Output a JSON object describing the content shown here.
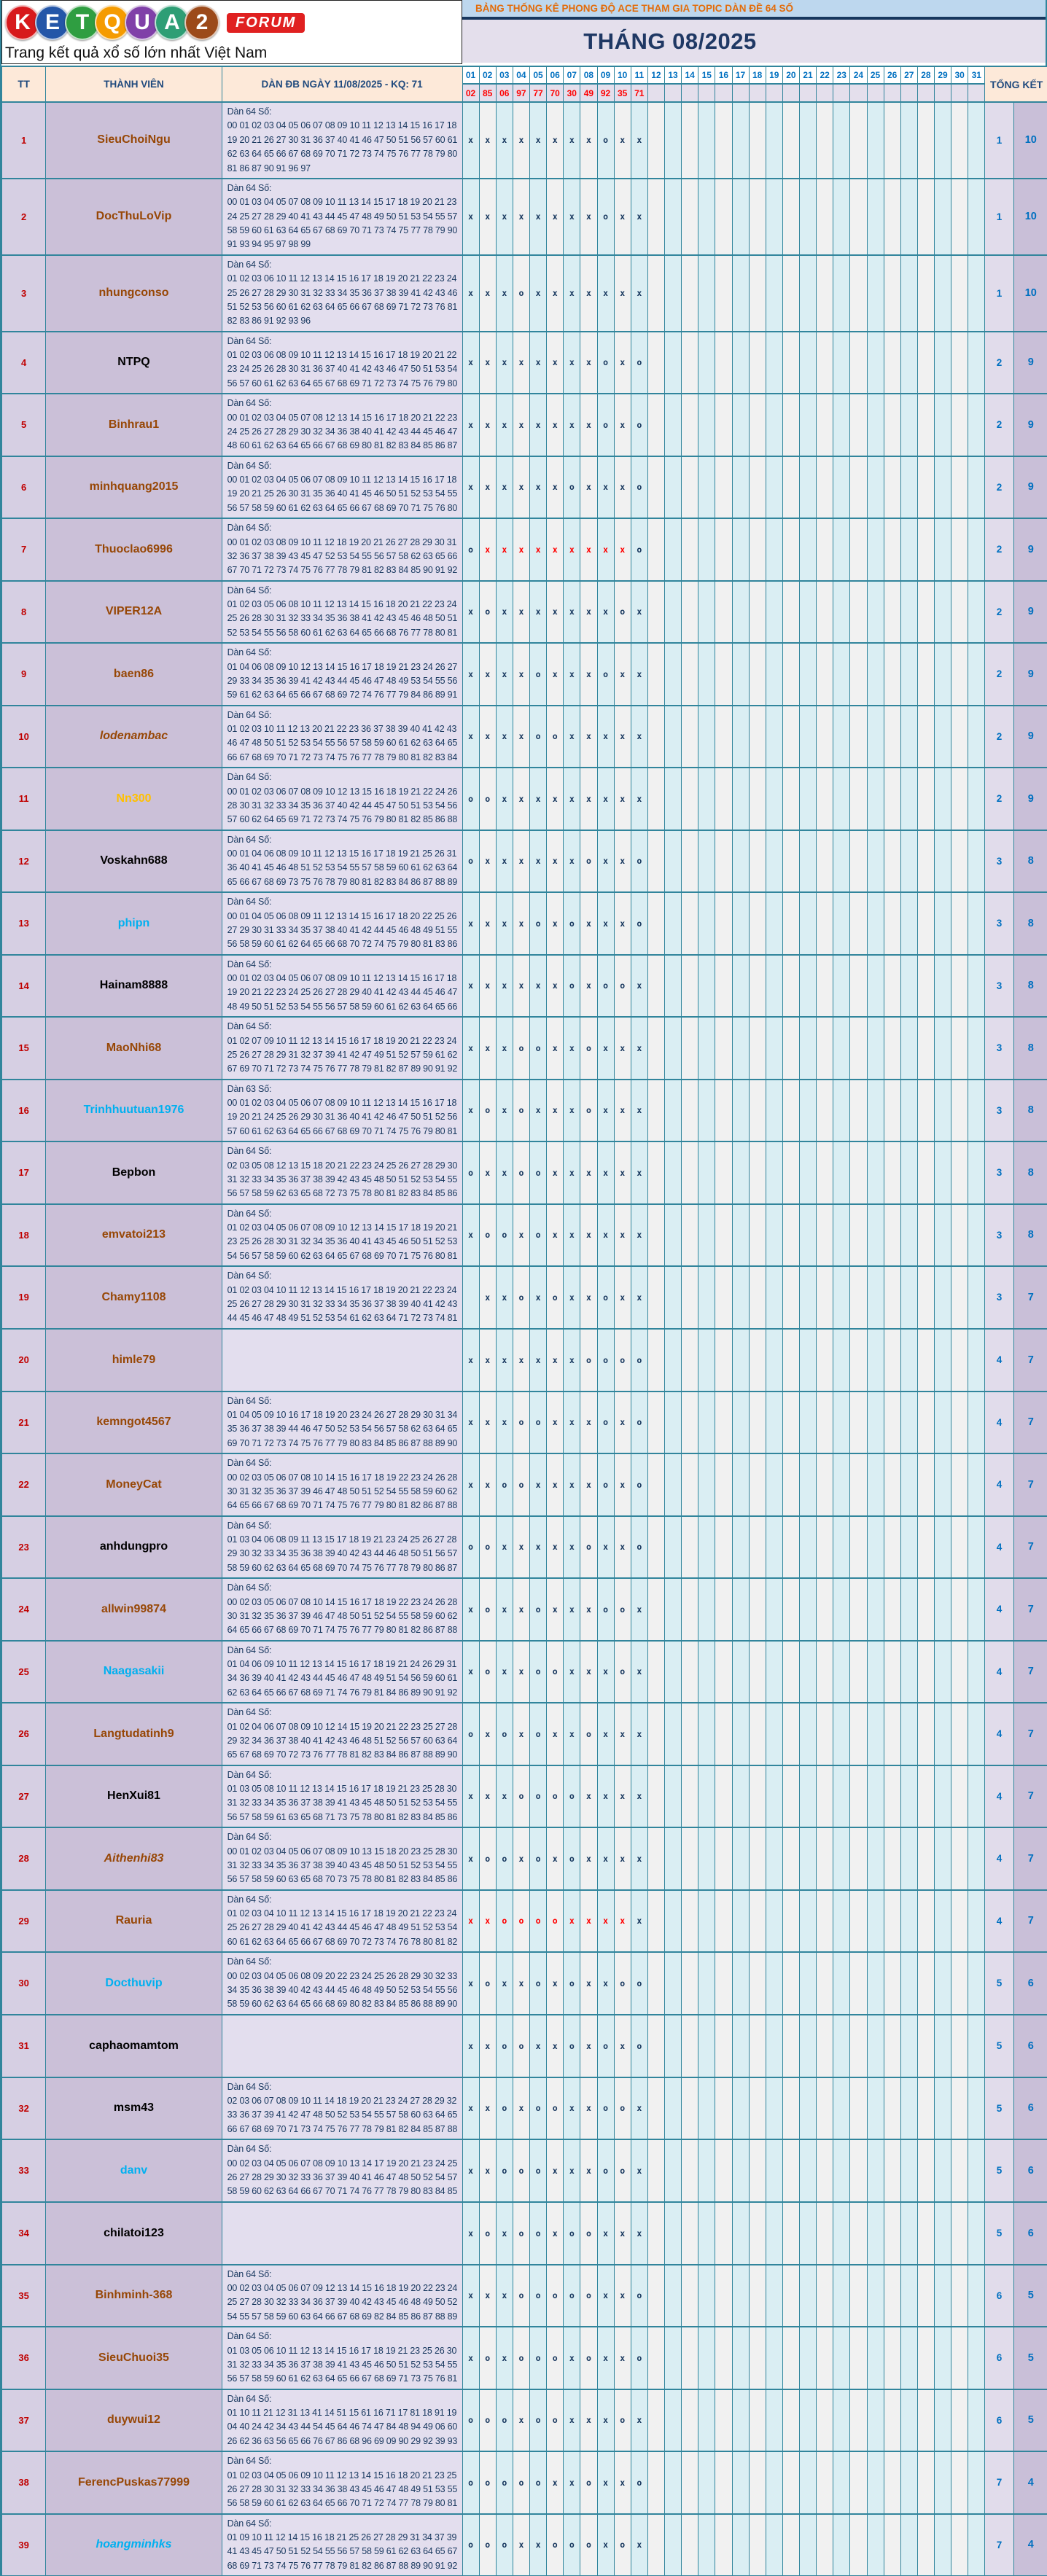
{
  "logo": {
    "letters": [
      {
        "ch": "K",
        "bg": "#d7191c"
      },
      {
        "ch": "E",
        "bg": "#2456a8"
      },
      {
        "ch": "T",
        "bg": "#2f9e41"
      },
      {
        "ch": "Q",
        "bg": "#f59b00"
      },
      {
        "ch": "U",
        "bg": "#8040a8"
      },
      {
        "ch": "A",
        "bg": "#2e9e75"
      },
      {
        "ch": "2",
        "bg": "#9c4a1a"
      }
    ],
    "forum": "FORUM",
    "tagline": "Trang kết quả xổ số lớn nhất Việt Nam"
  },
  "header": {
    "title": "BẢNG THỐNG KÊ PHONG ĐỘ ACE THAM GIA TOPIC DÀN ĐỀ 64 SỐ",
    "month": "THÁNG 08/2025"
  },
  "colors": {
    "accent_teal_border": "#31859C",
    "peach_header": "#FDE9D9",
    "lavender": "#E4DFEC",
    "purple_cell": "#CBC0D8",
    "day_cyan": "#DAEEF3",
    "day_gray": "#F1F1F1",
    "navy_text": "#17375E",
    "blue_number": "#0070C0",
    "red_result": "#FF0000",
    "orange_title": "#E36C0A",
    "name_brown": "#974706",
    "name_cyan": "#00B0F0",
    "name_orange": "#FFC000"
  },
  "table": {
    "col_tt": "TT",
    "col_member": "THÀNH VIÊN",
    "col_dan": "DÀN ĐB NGÀY 11/08/2025 - KQ: 71",
    "col_total": "TỔNG KẾT",
    "days": [
      "01",
      "02",
      "03",
      "04",
      "05",
      "06",
      "07",
      "08",
      "09",
      "10",
      "11",
      "12",
      "13",
      "14",
      "15",
      "16",
      "17",
      "18",
      "19",
      "20",
      "21",
      "22",
      "23",
      "24",
      "25",
      "26",
      "27",
      "28",
      "29",
      "30",
      "31"
    ],
    "results": [
      "02",
      "85",
      "06",
      "97",
      "77",
      "70",
      "30",
      "49",
      "92",
      "35",
      "71",
      "",
      "",
      "",
      "",
      "",
      "",
      "",
      "",
      "",
      "",
      "",
      "",
      "",
      "",
      "",
      "",
      "",
      "",
      "",
      ""
    ],
    "rows": [
      {
        "tt": "1",
        "name": "SieuChoiNgu",
        "color": "#974706",
        "italic": false,
        "dan_label": "Dàn 64 Số:",
        "dan": "00 01 02 03 04 05 06 07 08 09 10 11 12 13 14 15 16 17 18 19 20 21 26 27 30 31 36 37 40 41 46 47 50 51 56 57 60 61 62 63 64 65 66 67 68 69 70 71 72 73 74 75 76 77 78 79 80 81 86 87 90 91 96 97",
        "marks": "xxxxxxxxoxx",
        "red": [],
        "miss": "1",
        "win": "10"
      },
      {
        "tt": "2",
        "name": "DocThuLoVip",
        "color": "#974706",
        "italic": false,
        "dan_label": "Dàn 64 Số:",
        "dan": "00 01 03 04 05 07 08 09 10 11 13 14 15 17 18 19 20 21 23 24 25 27 28 29 40 41 43 44 45 47 48 49 50 51 53 54 55 57 58 59 60 61 63 64 65 67 68 69 70 71 73 74 75 77 78 79 90 91 93 94 95 97 98 99",
        "marks": "xxxxxxxxoxx",
        "red": [],
        "miss": "1",
        "win": "10"
      },
      {
        "tt": "3",
        "name": "nhungconso",
        "color": "#974706",
        "italic": false,
        "dan_label": "Dàn 64 Số:",
        "dan": "01 02 03 06 10 11 12 13 14 15 16 17 18 19 20 21 22 23 24 25 26 27 28 29 30 31 32 33 34 35 36 37 38 39 41 42 43 46 51 52 53 56 60 61 62 63 64 65 66 67 68 69 71 72 73 76 81 82 83 86 91 92 93 96",
        "marks": "xxxoxxxxxxx",
        "red": [],
        "miss": "1",
        "win": "10"
      },
      {
        "tt": "4",
        "name": "NTPQ",
        "color": "#000000",
        "italic": false,
        "dan_label": "Dàn 64 Số:",
        "dan": "01 02 03 06 08 09 10 11 12 13 14 15 16 17 18 19 20 21 22 23 24 25 26 28 30 31 36 37 40 41 42 43 46 47 50 51 53 54 56 57 60 61 62 63 64 65 67 68 69 71 72 73 74 75 76 79 80",
        "marks": "xxxxxxxxoxo",
        "red": [],
        "miss": "2",
        "win": "9"
      },
      {
        "tt": "5",
        "name": "Binhrau1",
        "color": "#974706",
        "italic": false,
        "dan_label": "Dàn 64 Số:",
        "dan": "00 01 02 03 04 05 07 08 12 13 14 15 16 17 18 20 21 22 23 24 25 26 27 28 29 30 32 34 36 38 40 41 42 43 44 45 46 47 48 60 61 62 63 64 65 66 67 68 69 80 81 82 83 84 85 86 87",
        "marks": "xxxxxxxxoxo",
        "red": [],
        "miss": "2",
        "win": "9"
      },
      {
        "tt": "6",
        "name": "minhquang2015",
        "color": "#974706",
        "italic": false,
        "dan_label": "Dàn 64 Số:",
        "dan": "00 01 02 03 04 05 06 07 08 09 10 11 12 13 14 15 16 17 18 19 20 21 25 26 30 31 35 36 40 41 45 46 50 51 52 53 54 55 56 57 58 59 60 61 62 63 64 65 66 67 68 69 70 71 75 76 80",
        "marks": "xxxxxxoxxxo",
        "red": [],
        "miss": "2",
        "win": "9"
      },
      {
        "tt": "7",
        "name": "Thuoclao6996",
        "color": "#974706",
        "italic": false,
        "dan_label": "Dàn 64 Số:",
        "dan": "00 01 02 03 08 09 10 11 12 18 19 20 21 26 27 28 29 30 31 32 36 37 38 39 43 45 47 52 53 54 55 56 57 58 62 63 65 66 67 70 71 72 73 74 75 76 77 78 79 81 82 83 84 85 90 91 92",
        "marks": "oxxxxxxxxxo",
        "red": [
          1,
          2,
          3,
          4,
          5,
          6,
          7,
          8,
          9
        ],
        "miss": "2",
        "win": "9"
      },
      {
        "tt": "8",
        "name": "VIPER12A",
        "color": "#974706",
        "italic": false,
        "dan_label": "Dàn 64 Số:",
        "dan": "01 02 03 05 06 08 10 11 12 13 14 15 16 18 20 21 22 23 24 25 26 28 30 31 32 33 34 35 36 38 41 42 43 45 46 48 50 51 52 53 54 55 56 58 60 61 62 63 64 65 66 68 76 77 78 80 81",
        "marks": "xoxxxxxxxox",
        "red": [],
        "miss": "2",
        "win": "9"
      },
      {
        "tt": "9",
        "name": "baen86",
        "color": "#974706",
        "italic": false,
        "dan_label": "Dàn 64 Số:",
        "dan": "01 04 06 08 09 10 12 13 14 15 16 17 18 19 21 23 24 26 27 29 33 34 35 36 39 41 42 43 44 45 46 47 48 49 53 54 55 56 59 61 62 63 64 65 66 67 68 69 72 74 76 77 79 84 86 89 91",
        "marks": "xxxxoxxxoxx",
        "red": [],
        "miss": "2",
        "win": "9"
      },
      {
        "tt": "10",
        "name": "lodenambac",
        "color": "#974706",
        "italic": true,
        "dan_label": "Dàn 64 Số:",
        "dan": "01 02 03 10 11 12 13 20 21 22 23 36 37 38 39 40 41 42 43 46 47 48 50 51 52 53 54 55 56 57 58 59 60 61 62 63 64 65 66 67 68 69 70 71 72 73 74 75 76 77 78 79 80 81 82 83 84",
        "marks": "xxxxooxxxxx",
        "red": [],
        "miss": "2",
        "win": "9"
      },
      {
        "tt": "11",
        "name": "Nn300",
        "color": "#FFC000",
        "italic": false,
        "dan_label": "Dàn 64 Số:",
        "dan": "00 01 02 03 06 07 08 09 10 12 13 15 16 18 19 21 22 24 26 28 30 31 32 33 34 35 36 37 40 42 44 45 47 50 51 53 54 56 57 60 62 64 65 69 71 72 73 74 75 76 79 80 81 82 85 86 88",
        "marks": "ooxxxxxxxxx",
        "red": [],
        "miss": "2",
        "win": "9"
      },
      {
        "tt": "12",
        "name": "Voskahn688",
        "color": "#000000",
        "italic": false,
        "dan_label": "Dàn 64 Số:",
        "dan": "00 01 04 06 08 09 10 11 12 13 15 16 17 18 19 21 25 26 31 36 40 41 45 46 48 51 52 53 54 55 57 58 59 60 61 62 63 64 65 66 67 68 69 73 75 76 78 79 80 81 82 83 84 86 87 88 89",
        "marks": "oxxxxxxoxxo",
        "red": [],
        "miss": "3",
        "win": "8"
      },
      {
        "tt": "13",
        "name": "phipn",
        "color": "#00B0F0",
        "italic": false,
        "dan_label": "Dàn 64 Số:",
        "dan": "00 01 04 05 06 08 09 11 12 13 14 15 16 17 18 20 22 25 26 27 29 30 31 33 34 35 37 38 40 41 42 44 45 46 48 49 51 55 56 58 59 60 61 62 64 65 66 68 70 72 74 75 79 80 81 83 86",
        "marks": "xxxxoxoxxxo",
        "red": [],
        "miss": "3",
        "win": "8"
      },
      {
        "tt": "14",
        "name": "Hainam8888",
        "color": "#000000",
        "italic": false,
        "dan_label": "Dàn 64 Số:",
        "dan": "00 01 02 03 04 05 06 07 08 09 10 11 12 13 14 15 16 17 18 19 20 21 22 23 24 25 26 27 28 29 40 41 42 43 44 45 46 47 48 49 50 51 52 53 54 55 56 57 58 59 60 61 62 63 64 65 66",
        "marks": "xxxxxxoxoox",
        "red": [],
        "miss": "3",
        "win": "8"
      },
      {
        "tt": "15",
        "name": "MaoNhi68",
        "color": "#974706",
        "italic": false,
        "dan_label": "Dàn 64 Số:",
        "dan": "01 02 07 09 10 11 12 13 14 15 16 17 18 19 20 21 22 23 24 25 26 27 28 29 31 32 37 39 41 42 47 49 51 52 57 59 61 62 67 69 70 71 72 73 74 75 76 77 78 79 81 82 87 89 90 91 92",
        "marks": "xxxooxxoxxx",
        "red": [],
        "miss": "3",
        "win": "8"
      },
      {
        "tt": "16",
        "name": "Trinhhuutuan1976",
        "color": "#00B0F0",
        "italic": false,
        "dan_label": "Dàn 63 Số:",
        "dan": "00 01 02 03 04 05 06 07 08 09 10 11 12 13 14 15 16 17 18 19 20 21 24 25 26 29 30 31 36 40 41 42 46 47 50 51 52 56 57 60 61 62 63 64 65 66 67 68 69 70 71 74 75 76 79 80 81",
        "marks": "xoxoxxxoxxx",
        "red": [],
        "miss": "3",
        "win": "8"
      },
      {
        "tt": "17",
        "name": "Bepbon",
        "color": "#000000",
        "italic": false,
        "dan_label": "Dàn 64 Số:",
        "dan": "02 03 05 08 12 13 15 18 20 21 22 23 24 25 26 27 28 29 30 31 32 33 34 35 36 37 38 39 42 43 45 48 50 51 52 53 54 55 56 57 58 59 62 63 65 68 72 73 75 78 80 81 82 83 84 85 86",
        "marks": "oxxooxxxxxx",
        "red": [],
        "miss": "3",
        "win": "8"
      },
      {
        "tt": "18",
        "name": "emvatoi213",
        "color": "#974706",
        "italic": false,
        "dan_label": "Dàn 64 Số:",
        "dan": "01 02 03 04 05 06 07 08 09 10 12 13 14 15 17 18 19 20 21 23 25 26 28 30 31 32 34 35 36 40 41 43 45 46 50 51 52 53 54 56 57 58 59 60 62 63 64 65 67 68 69 70 71 75 76 80 81",
        "marks": "xooxoxxxxxx",
        "red": [],
        "miss": "3",
        "win": "8"
      },
      {
        "tt": "19",
        "name": "Chamy1108",
        "color": "#974706",
        "italic": false,
        "dan_label": "Dàn 64 Số:",
        "dan": "01 02 03 04 10 11 12 13 14 15 16 17 18 19 20 21 22 23 24 25 26 27 28 29 30 31 32 33 34 35 36 37 38 39 40 41 42 43 44 45 46 47 48 49 51 52 53 54 61 62 63 64 71 72 73 74 81",
        "marks": "-xxoxoxxoxx",
        "red": [],
        "miss": "3",
        "win": "7"
      },
      {
        "tt": "20",
        "name": "himle79",
        "color": "#974706",
        "italic": false,
        "dan_label": "",
        "dan": "",
        "marks": "xxxxxxxoooo",
        "red": [],
        "miss": "4",
        "win": "7"
      },
      {
        "tt": "21",
        "name": "kemngot4567",
        "color": "#974706",
        "italic": false,
        "dan_label": "Dàn 64 Số:",
        "dan": "01 04 05 09 10 16 17 18 19 20 23 24 26 27 28 29 30 31 34 35 36 37 38 39 44 46 47 50 52 53 54 56 57 58 62 63 64 65 69 70 71 72 73 74 75 76 77 79 80 83 84 85 86 87 88 89 90",
        "marks": "xxxooxxxoxo",
        "red": [],
        "miss": "4",
        "win": "7"
      },
      {
        "tt": "22",
        "name": "MoneyCat",
        "color": "#974706",
        "italic": false,
        "dan_label": "Dàn 64 Số:",
        "dan": "00 02 03 05 06 07 08 10 14 15 16 17 18 19 22 23 24 26 28 30 31 32 35 36 37 39 46 47 48 50 51 52 54 55 58 59 60 62 64 65 66 67 68 69 70 71 74 75 76 77 79 80 81 82 86 87 88",
        "marks": "xxooxxxxoxo",
        "red": [],
        "miss": "4",
        "win": "7"
      },
      {
        "tt": "23",
        "name": "anhdungpro",
        "color": "#000000",
        "italic": false,
        "dan_label": "Dàn 64 Số:",
        "dan": "01 03 04 06 08 09 11 13 15 17 18 19 21 23 24 25 26 27 28 29 30 32 33 34 35 36 38 39 40 42 43 44 46 48 50 51 56 57 58 59 60 62 63 64 65 68 69 70 74 75 76 77 78 79 80 86 87",
        "marks": "ooxxxxxoxxo",
        "red": [],
        "miss": "4",
        "win": "7"
      },
      {
        "tt": "24",
        "name": "allwin99874",
        "color": "#974706",
        "italic": false,
        "dan_label": "Dàn 64 Số:",
        "dan": "00 02 03 05 06 07 08 10 14 15 16 17 18 19 22 23 24 26 28 30 31 32 35 36 37 39 46 47 48 50 51 52 54 55 58 59 60 62 64 65 66 67 68 69 70 71 74 75 76 77 79 80 81 82 86 87 88",
        "marks": "xoxxoxxxoox",
        "red": [],
        "miss": "4",
        "win": "7"
      },
      {
        "tt": "25",
        "name": "Naagasakii",
        "color": "#00B0F0",
        "italic": false,
        "dan_label": "Dàn 64 Số:",
        "dan": "01 04 06 09 10 11 12 13 14 15 16 17 18 19 21 24 26 29 31 34 36 39 40 41 42 43 44 45 46 47 48 49 51 54 56 59 60 61 62 63 64 65 66 67 68 69 71 74 76 79 81 84 86 89 90 91 92",
        "marks": "xoxxooxxxox",
        "red": [],
        "miss": "4",
        "win": "7"
      },
      {
        "tt": "26",
        "name": "Langtudatinh9",
        "color": "#974706",
        "italic": false,
        "dan_label": "Dàn 64 Số:",
        "dan": "01 02 04 06 07 08 09 10 12 14 15 19 20 21 22 23 25 27 28 29 32 34 36 37 38 40 41 42 43 46 48 51 52 56 57 60 63 64 65 67 68 69 70 72 73 76 77 78 81 82 83 84 86 87 88 89 90",
        "marks": "oxoxoxxoxxx",
        "red": [],
        "miss": "4",
        "win": "7"
      },
      {
        "tt": "27",
        "name": "HenXui81",
        "color": "#000000",
        "italic": false,
        "dan_label": "Dàn 64 Số:",
        "dan": "01 03 05 08 10 11 12 13 14 15 16 17 18 19 21 23 25 28 30 31 32 33 34 35 36 37 38 39 41 43 45 48 50 51 52 53 54 55 56 57 58 59 61 63 65 68 71 73 75 78 80 81 82 83 84 85 86",
        "marks": "xxxooooxxxx",
        "red": [],
        "miss": "4",
        "win": "7"
      },
      {
        "tt": "28",
        "name": "Aithenhi83",
        "color": "#974706",
        "italic": true,
        "dan_label": "Dàn 64 Số:",
        "dan": "00 01 02 03 04 05 06 07 08 09 10 13 15 18 20 23 25 28 30 31 32 33 34 35 36 37 38 39 40 43 45 48 50 51 52 53 54 55 56 57 58 59 60 63 65 68 70 73 75 78 80 81 82 83 84 85 86",
        "marks": "xooxoxoxxxx",
        "red": [],
        "miss": "4",
        "win": "7"
      },
      {
        "tt": "29",
        "name": "Rauria",
        "color": "#974706",
        "italic": false,
        "dan_label": "Dàn 64 Số:",
        "dan": "01 02 03 04 10 11 12 13 14 15 16 17 18 19 20 21 22 23 24 25 26 27 28 29 40 41 42 43 44 45 46 47 48 49 51 52 53 54 60 61 62 63 64 65 66 67 68 69 70 72 73 74 76 78 80 81 82",
        "marks": "xxooooxxxxx",
        "red": [
          0,
          1,
          2,
          3,
          4,
          5,
          6,
          7,
          8,
          9
        ],
        "miss": "4",
        "win": "7"
      },
      {
        "tt": "30",
        "name": "Docthuvip",
        "color": "#00B0F0",
        "italic": false,
        "dan_label": "Dàn 64 Số:",
        "dan": "00 02 03 04 05 06 08 09 20 22 23 24 25 26 28 29 30 32 33 34 35 36 38 39 40 42 43 44 45 46 48 49 50 52 53 54 55 56 58 59 60 62 63 64 65 66 68 69 80 82 83 84 85 86 88 89 90",
        "marks": "xoxxoxoxxoo",
        "red": [],
        "miss": "5",
        "win": "6"
      },
      {
        "tt": "31",
        "name": "caphaomamtom",
        "color": "#000000",
        "italic": false,
        "dan_label": "",
        "dan": "",
        "marks": "xxooxxoxoxo",
        "red": [],
        "miss": "5",
        "win": "6"
      },
      {
        "tt": "32",
        "name": "msm43",
        "color": "#000000",
        "italic": false,
        "dan_label": "Dàn 64 Số:",
        "dan": "02 03 06 07 08 09 10 11 14 18 19 20 21 23 24 27 28 29 32 33 36 37 39 41 42 47 48 50 52 53 54 55 57 58 60 63 64 65 66 67 68 69 70 71 73 74 75 76 77 78 79 81 82 84 85 87 88",
        "marks": "xxoxooxxoox",
        "red": [],
        "miss": "5",
        "win": "6"
      },
      {
        "tt": "33",
        "name": "danv",
        "color": "#00B0F0",
        "italic": false,
        "dan_label": "Dàn 64 Số:",
        "dan": "00 02 03 04 05 06 07 08 09 10 13 14 17 19 20 21 23 24 25 26 27 28 29 30 32 33 36 37 39 40 41 46 47 48 50 52 54 57 58 59 60 62 63 64 66 67 70 71 74 76 77 78 79 80 83 84 85",
        "marks": "xxoooxxxoox",
        "red": [],
        "miss": "5",
        "win": "6"
      },
      {
        "tt": "34",
        "name": "chilatoi123",
        "color": "#000000",
        "italic": false,
        "dan_label": "",
        "dan": "",
        "marks": "xoxooxooxxx",
        "red": [],
        "miss": "5",
        "win": "6"
      },
      {
        "tt": "35",
        "name": "Binhminh-368",
        "color": "#974706",
        "italic": false,
        "dan_label": "Dàn 64 Số:",
        "dan": "00 02 03 04 05 06 07 09 12 13 14 15 16 18 19 20 22 23 24 25 27 28 30 32 33 34 36 37 39 40 42 43 45 46 48 49 50 52 54 55 57 58 59 60 63 64 66 67 68 69 82 84 85 86 87 88 89",
        "marks": "xxxoooooxxo",
        "red": [],
        "miss": "6",
        "win": "5"
      },
      {
        "tt": "36",
        "name": "SieuChuoi35",
        "color": "#974706",
        "italic": false,
        "dan_label": "Dàn 64 Số:",
        "dan": "01 03 05 06 10 11 12 13 14 15 16 17 18 19 21 23 25 26 30 31 32 33 34 35 36 37 38 39 41 43 45 46 50 51 52 53 54 55 56 57 58 59 60 61 62 63 64 65 66 67 68 69 71 73 75 76 81",
        "marks": "xoxoooxoxxo",
        "red": [],
        "miss": "6",
        "win": "5"
      },
      {
        "tt": "37",
        "name": "duywui12",
        "color": "#974706",
        "italic": false,
        "dan_label": "Dàn 64 Số:",
        "dan": "01 10 11 21 12 31 13 41 14 51 15 61 16 71 17 81 18 91 19 04 40 24 42 34 43 44 54 45 64 46 74 47 84 48 94 49 06 60 26 62 36 63 56 65 66 76 67 86 68 96 69 09 90 29 92 39 93",
        "marks": "oooxooxxxox",
        "red": [],
        "miss": "6",
        "win": "5"
      },
      {
        "tt": "38",
        "name": "FerencPuskas77999",
        "color": "#974706",
        "italic": false,
        "dan_label": "Dàn 64 Số:",
        "dan": "01 02 03 04 05 06 09 10 11 12 13 14 15 16 18 20 21 23 25 26 27 28 30 31 32 33 34 36 38 43 45 46 47 48 49 51 53 55 56 58 59 60 61 62 63 64 65 66 70 71 72 74 77 78 79 80 81",
        "marks": "oooooxxoxxo",
        "red": [],
        "miss": "7",
        "win": "4"
      },
      {
        "tt": "39",
        "name": "hoangminhks",
        "color": "#00B0F0",
        "italic": true,
        "dan_label": "Dàn 64 Số:",
        "dan": "01 09 10 11 12 14 15 16 18 21 25 26 27 28 29 31 34 37 39 41 43 45 47 50 51 52 54 55 56 57 58 59 61 62 63 64 65 67 68 69 71 73 74 75 76 77 78 79 81 82 86 87 88 89 90 91 92",
        "marks": "oooxxoooxox",
        "red": [],
        "miss": "7",
        "win": "4"
      }
    ]
  }
}
